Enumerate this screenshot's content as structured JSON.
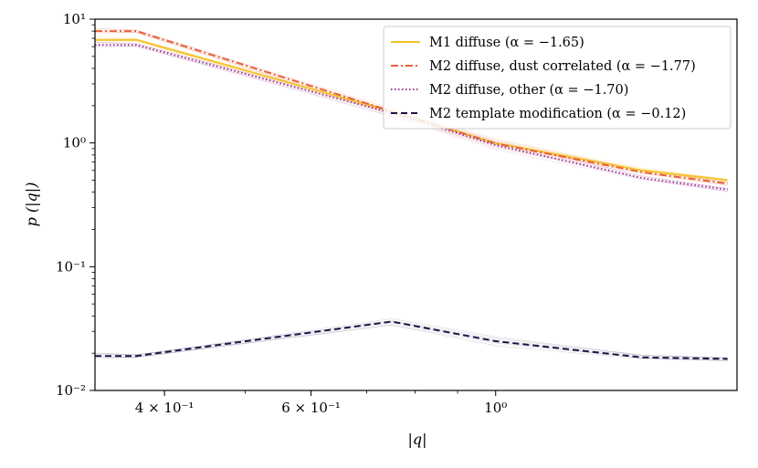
{
  "chart_data": {
    "type": "line",
    "xscale": "log",
    "yscale": "log",
    "xlabel": "|q|",
    "ylabel": "p (|q|)",
    "xlim": [
      0.33,
      1.95
    ],
    "ylim": [
      0.01,
      10
    ],
    "x_ticks": [
      {
        "value": 0.4,
        "label": "4 × 10⁻¹"
      },
      {
        "value": 0.6,
        "label": "6 × 10⁻¹"
      },
      {
        "value": 1.0,
        "label": "10⁰"
      }
    ],
    "y_ticks": [
      {
        "value": 0.01,
        "label": "10⁻²"
      },
      {
        "value": 0.1,
        "label": "10⁻¹"
      },
      {
        "value": 1,
        "label": "10⁰"
      },
      {
        "value": 10,
        "label": "10¹"
      }
    ],
    "legend_position": "top-right",
    "series": [
      {
        "name": "M1 diffuse (α = −1.65)",
        "color": "#f5c22b",
        "style": "solid",
        "x": [
          0.33,
          0.37,
          0.75,
          1.0,
          1.5,
          1.9
        ],
        "y": [
          6.8,
          6.8,
          1.8,
          1.0,
          0.6,
          0.5
        ]
      },
      {
        "name": "M2 diffuse, dust correlated (α = −1.77)",
        "color": "#e8603b",
        "style": "dashdot",
        "x": [
          0.33,
          0.37,
          0.75,
          1.0,
          1.5,
          1.9
        ],
        "y": [
          8.0,
          8.0,
          1.8,
          0.99,
          0.58,
          0.47
        ]
      },
      {
        "name": "M2 diffuse, other (α = −1.70)",
        "color": "#9a3a8e",
        "style": "dotted",
        "x": [
          0.33,
          0.37,
          0.75,
          1.0,
          1.5,
          1.9
        ],
        "y": [
          6.2,
          6.2,
          1.75,
          0.96,
          0.52,
          0.42
        ]
      },
      {
        "name": "M2 template modification (α = −0.12)",
        "color": "#1f1447",
        "style": "dashed",
        "x": [
          0.33,
          0.37,
          0.75,
          1.0,
          1.5,
          1.9
        ],
        "y": [
          0.019,
          0.019,
          0.036,
          0.025,
          0.0185,
          0.018
        ]
      }
    ]
  }
}
